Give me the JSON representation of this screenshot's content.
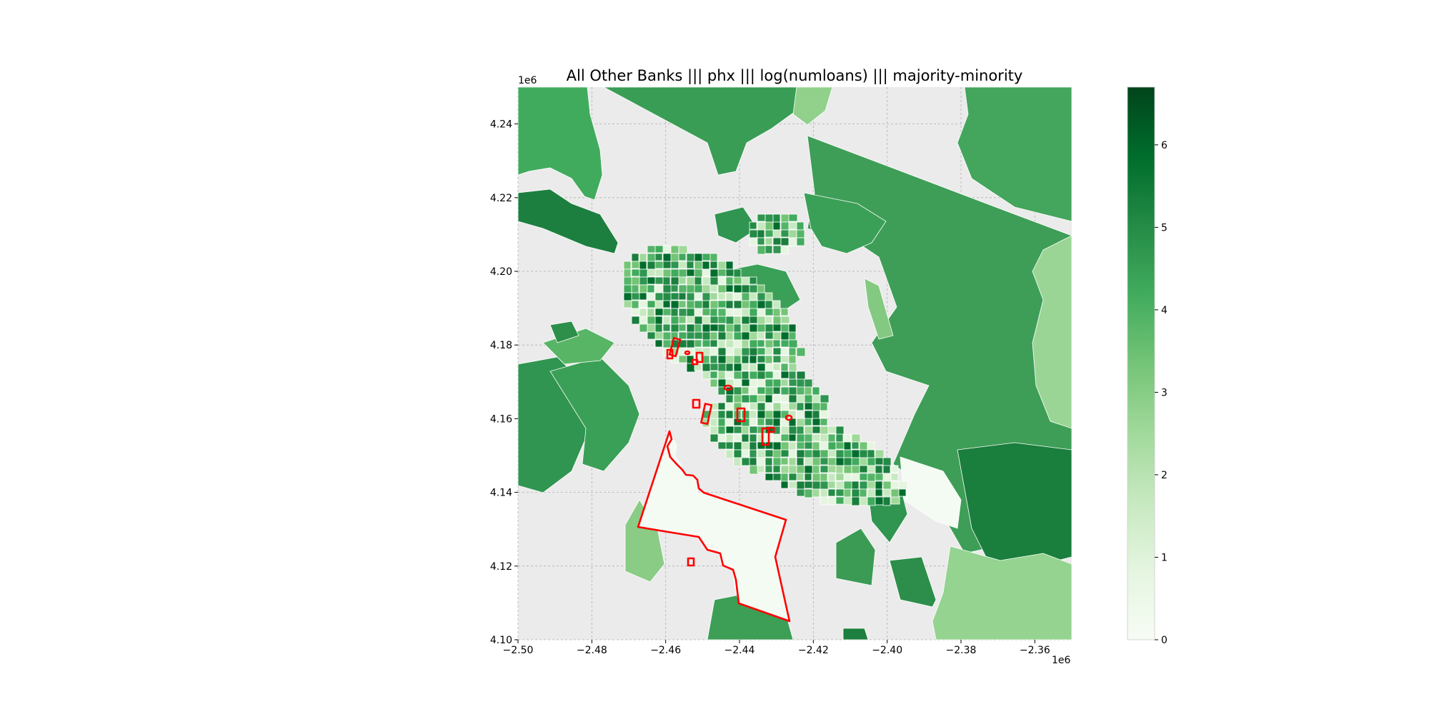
{
  "chart_data": {
    "type": "choropleth-map",
    "title": "All Other Banks ||| phx ||| log(numloans) ||| majority-minority",
    "x_axis": {
      "range": [
        -2.5,
        -2.35
      ],
      "ticks": [
        {
          "value": -2.5,
          "label": "−2.50"
        },
        {
          "value": -2.48,
          "label": "−2.48"
        },
        {
          "value": -2.46,
          "label": "−2.46"
        },
        {
          "value": -2.44,
          "label": "−2.44"
        },
        {
          "value": -2.42,
          "label": "−2.42"
        },
        {
          "value": -2.4,
          "label": "−2.40"
        },
        {
          "value": -2.38,
          "label": "−2.38"
        },
        {
          "value": -2.36,
          "label": "−2.36"
        }
      ],
      "offset_label": "1e6"
    },
    "y_axis": {
      "range": [
        4.1,
        4.25
      ],
      "ticks": [
        {
          "value": 4.1,
          "label": "4.10"
        },
        {
          "value": 4.12,
          "label": "4.12"
        },
        {
          "value": 4.14,
          "label": "4.14"
        },
        {
          "value": 4.16,
          "label": "4.16"
        },
        {
          "value": 4.18,
          "label": "4.18"
        },
        {
          "value": 4.2,
          "label": "4.20"
        },
        {
          "value": 4.22,
          "label": "4.22"
        },
        {
          "value": 4.24,
          "label": "4.24"
        }
      ],
      "offset_label": "1e6"
    },
    "grid": true,
    "background_color": "#ebebeb",
    "colormap": "Greens",
    "colorbar": {
      "range": [
        0,
        6.7
      ],
      "ticks": [
        {
          "value": 0,
          "label": "0"
        },
        {
          "value": 1,
          "label": "1"
        },
        {
          "value": 2,
          "label": "2"
        },
        {
          "value": 3,
          "label": "3"
        },
        {
          "value": 4,
          "label": "4"
        },
        {
          "value": 5,
          "label": "5"
        },
        {
          "value": 6,
          "label": "6"
        }
      ]
    },
    "highlight_color": "#ff0000"
  }
}
